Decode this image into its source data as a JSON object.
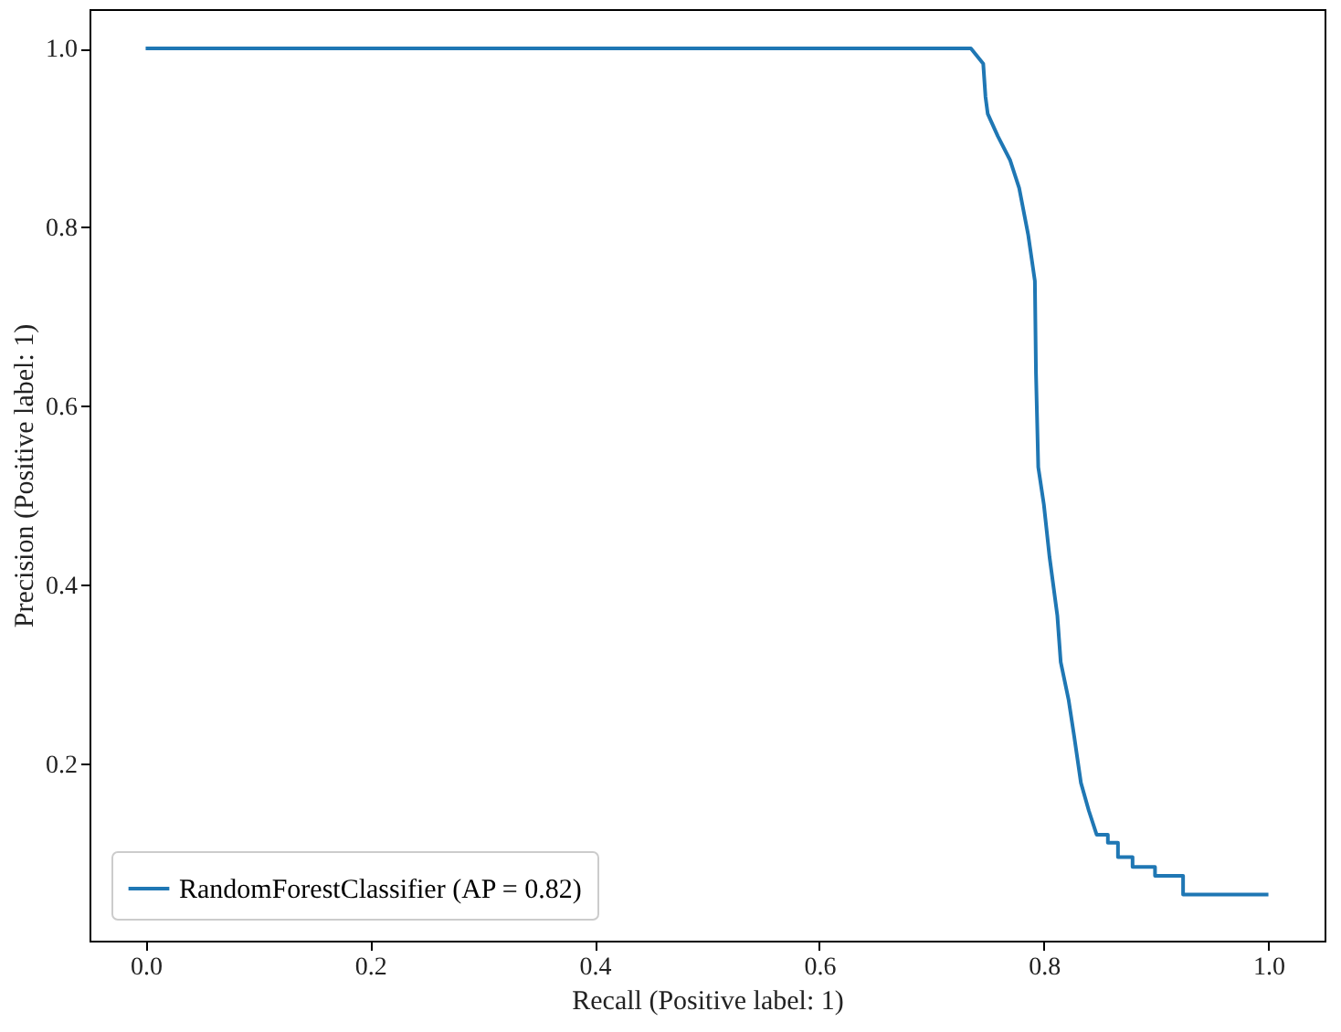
{
  "chart_data": {
    "type": "line",
    "xlabel": "Recall (Positive label: 1)",
    "ylabel": "Precision (Positive label: 1)",
    "xlim": [
      -0.05,
      1.05
    ],
    "ylim": [
      0.0025,
      1.044
    ],
    "xticks": [
      {
        "value": 0,
        "label": "0.0"
      },
      0.2,
      0.4,
      0.6,
      0.8,
      {
        "value": 1,
        "label": "1.0"
      }
    ],
    "yticks": [
      0.2,
      0.4,
      0.6,
      0.8,
      {
        "value": 1,
        "label": "1.0"
      }
    ],
    "grid": false,
    "legend": "bottom left",
    "marker": "none",
    "line_style": "solid",
    "series": [
      {
        "name": "RandomForestClassifier (AP = 0.82)",
        "color": "#1f77b4",
        "x": [
          0.0,
          0.68,
          0.735,
          0.746,
          0.748,
          0.75,
          0.759,
          0.77,
          0.778,
          0.786,
          0.792,
          0.793,
          0.795,
          0.8,
          0.805,
          0.812,
          0.815,
          0.822,
          0.827,
          0.833,
          0.84,
          0.847,
          0.857,
          0.857,
          0.866,
          0.866,
          0.879,
          0.879,
          0.899,
          0.899,
          0.924,
          0.924,
          1.0
        ],
        "values": [
          1.0,
          1.0,
          1.0,
          0.983,
          0.946,
          0.927,
          0.902,
          0.875,
          0.844,
          0.792,
          0.74,
          0.636,
          0.532,
          0.49,
          0.432,
          0.366,
          0.314,
          0.272,
          0.231,
          0.179,
          0.148,
          0.121,
          0.121,
          0.112,
          0.112,
          0.096,
          0.096,
          0.085,
          0.085,
          0.075,
          0.075,
          0.054,
          0.054
        ]
      }
    ]
  }
}
